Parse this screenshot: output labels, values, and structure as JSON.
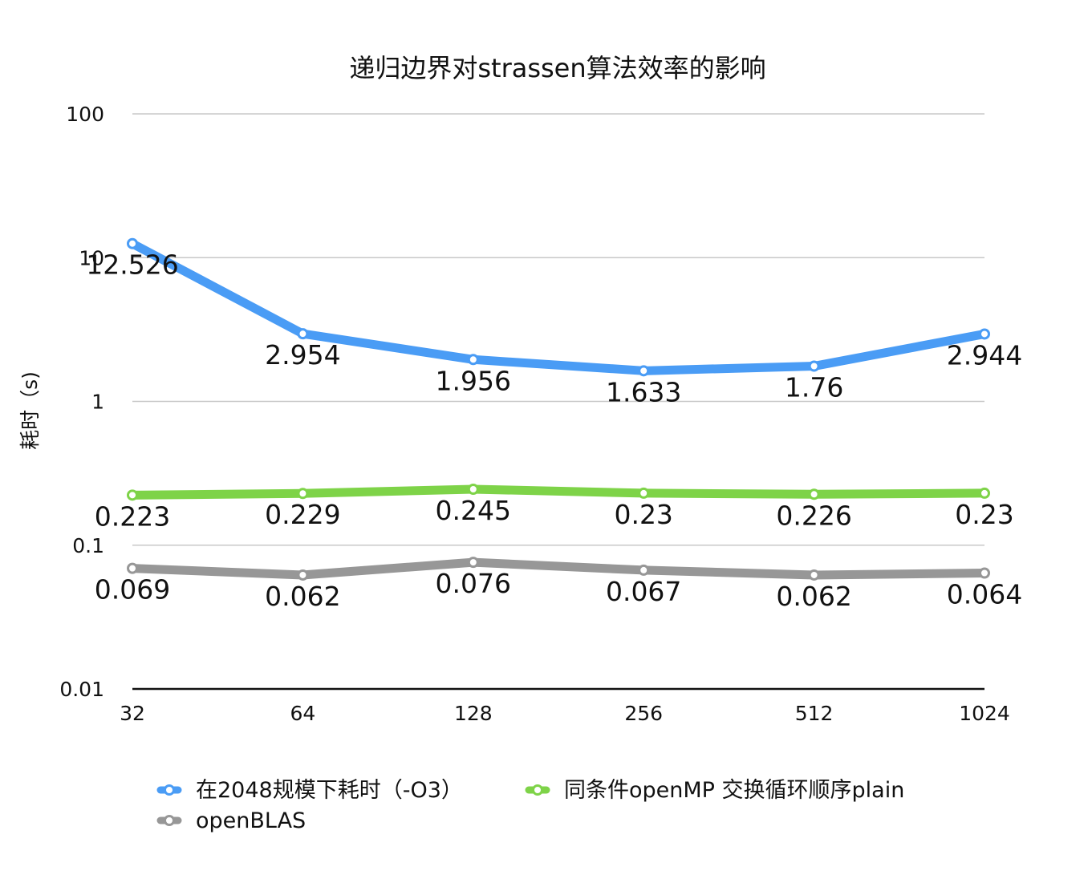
{
  "chart_data": {
    "type": "line",
    "title": "递归边界对strassen算法效率的影响",
    "xlabel": "",
    "ylabel": "耗时（s)",
    "categories": [
      "32",
      "64",
      "128",
      "256",
      "512",
      "1024"
    ],
    "y_scale": "log",
    "ylim": [
      0.01,
      100
    ],
    "y_ticks": [
      "0.01",
      "0.1",
      "1",
      "10",
      "100"
    ],
    "grid": true,
    "legend_position": "bottom",
    "series": [
      {
        "name": "在2048规模下耗时（-O3）",
        "color": "#4A9CF5",
        "values": [
          12.526,
          2.954,
          1.956,
          1.633,
          1.76,
          2.944
        ],
        "labels": [
          "12.526",
          "2.954",
          "1.956",
          "1.633",
          "1.76",
          "2.944"
        ]
      },
      {
        "name": "同条件openMP 交换循环顺序plain",
        "color": "#7ED348",
        "values": [
          0.223,
          0.229,
          0.245,
          0.23,
          0.226,
          0.23
        ],
        "labels": [
          "0.223",
          "0.229",
          "0.245",
          "0.23",
          "0.226",
          "0.23"
        ]
      },
      {
        "name": "openBLAS",
        "color": "#979797",
        "values": [
          0.069,
          0.062,
          0.076,
          0.067,
          0.062,
          0.064
        ],
        "labels": [
          "0.069",
          "0.062",
          "0.076",
          "0.067",
          "0.062",
          "0.064"
        ]
      }
    ]
  }
}
